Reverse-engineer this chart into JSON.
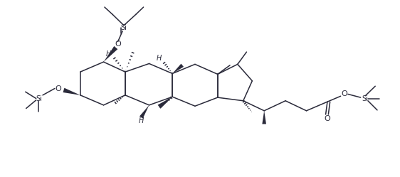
{
  "figsize": [
    5.62,
    2.49
  ],
  "dpi": 100,
  "bg_color": "#ffffff",
  "line_color": "#2a2a3a",
  "line_width": 1.1,
  "font_size": 7.0,
  "xlim": [
    -0.5,
    10.8
  ],
  "ylim": [
    0.5,
    5.8
  ]
}
